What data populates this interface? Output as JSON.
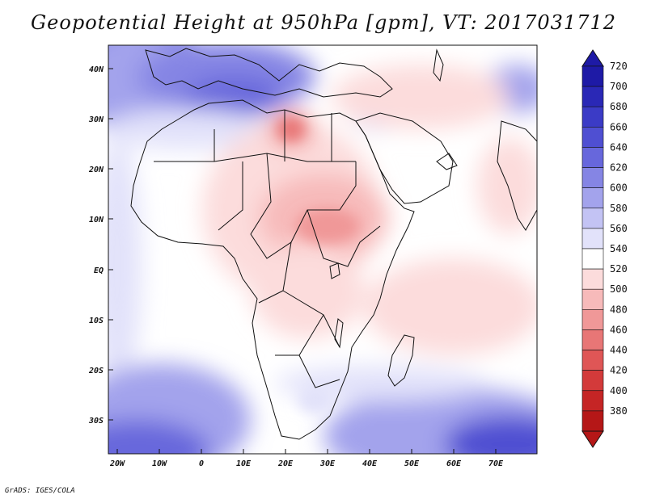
{
  "title": "Geopotential Height at 950hPa [gpm], VT: 2017031712",
  "footer": "GrADS: IGES/COLA",
  "map": {
    "lat_ticks": [
      "40N",
      "30N",
      "20N",
      "10N",
      "EQ",
      "10S",
      "20S",
      "30S"
    ],
    "lon_ticks": [
      "20W",
      "10W",
      "0",
      "10E",
      "20E",
      "30E",
      "40E",
      "50E",
      "60E",
      "70E"
    ]
  },
  "colorbar": {
    "levels": [
      "720",
      "700",
      "680",
      "660",
      "640",
      "620",
      "600",
      "580",
      "560",
      "540",
      "520",
      "500",
      "480",
      "460",
      "440",
      "420",
      "400",
      "380"
    ],
    "colors": [
      "#1e1aa6",
      "#2a28b6",
      "#3b3bc6",
      "#4f4fd2",
      "#6767dc",
      "#8585e4",
      "#a3a3ec",
      "#c3c3f4",
      "#e2e2fa",
      "#ffffff",
      "#fcdcdc",
      "#f7baba",
      "#f09898",
      "#e87676",
      "#df5656",
      "#d33a3a",
      "#c52525",
      "#b51717"
    ]
  }
}
